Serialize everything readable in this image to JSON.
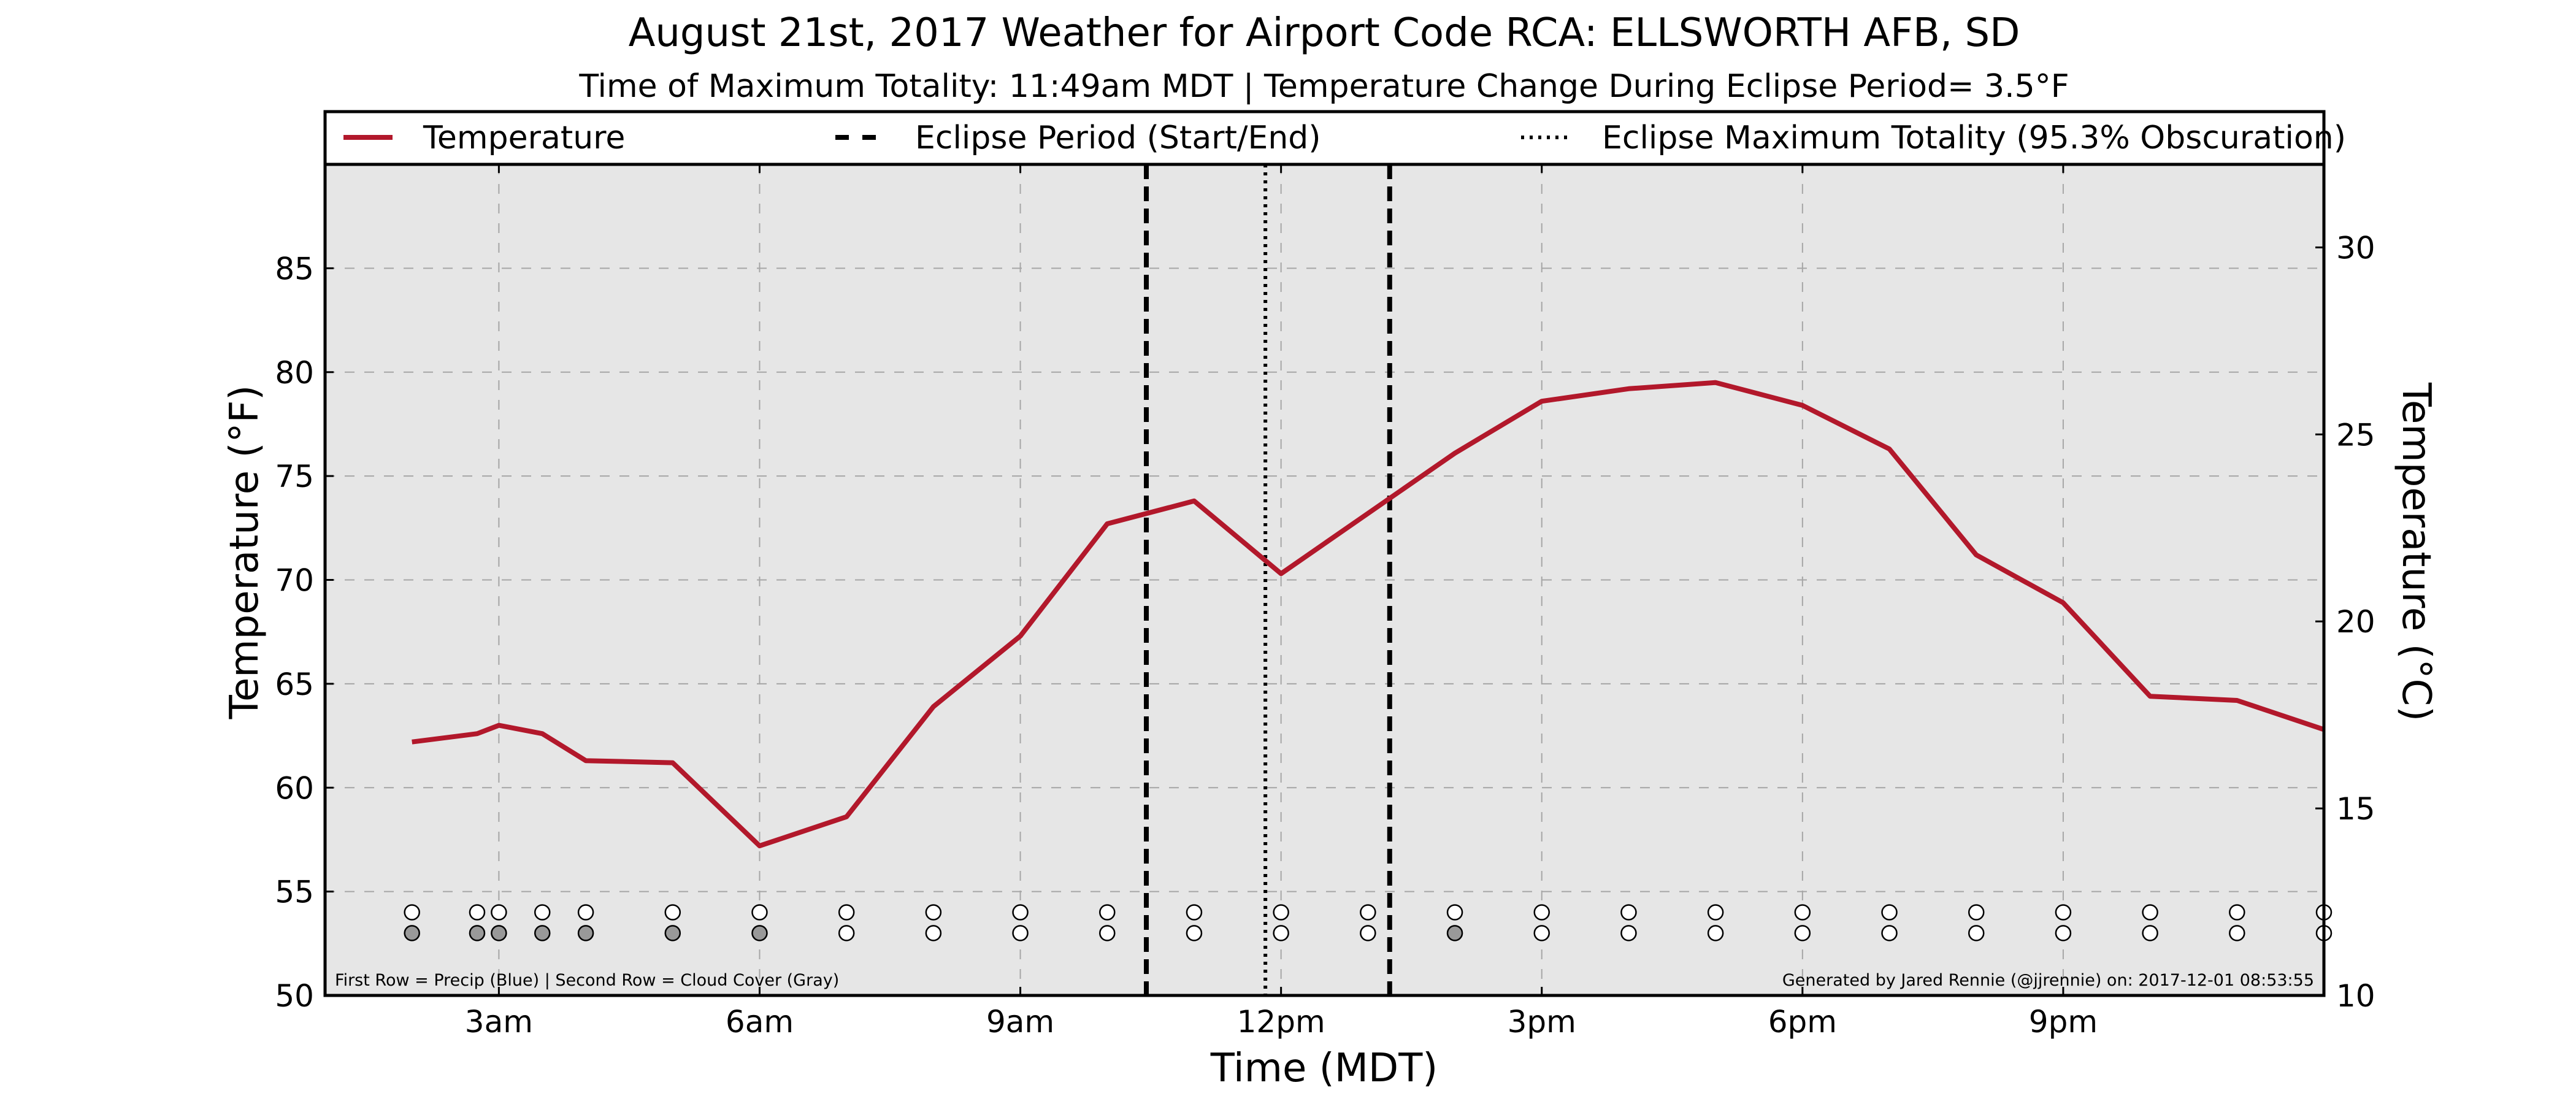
{
  "chart_data": {
    "type": "line",
    "title": "August 21st, 2017 Weather for Airport Code RCA: ELLSWORTH AFB, SD",
    "subtitle": "Time of Maximum Totality: 11:49am MDT | Temperature Change During Eclipse Period= 3.5°F",
    "xlabel": "Time (MDT)",
    "ylabel": "Temperature (°F)",
    "y2label": "Temperature (°C)",
    "xlim": [
      1.0,
      24.0
    ],
    "ylim": [
      50,
      90
    ],
    "y2lim": [
      10,
      32.22
    ],
    "x_ticks": [
      {
        "value": 3,
        "label": "3am"
      },
      {
        "value": 6,
        "label": "6am"
      },
      {
        "value": 9,
        "label": "9am"
      },
      {
        "value": 12,
        "label": "12pm"
      },
      {
        "value": 15,
        "label": "3pm"
      },
      {
        "value": 18,
        "label": "6pm"
      },
      {
        "value": 21,
        "label": "9pm"
      }
    ],
    "y_ticks": [
      50,
      55,
      60,
      65,
      70,
      75,
      80,
      85
    ],
    "y2_ticks": [
      10,
      15,
      20,
      25,
      30
    ],
    "grid": true,
    "legend": {
      "position": "top",
      "entries": [
        {
          "label": "Temperature",
          "style": "solid",
          "color": "#b2182b"
        },
        {
          "label": "Eclipse Period (Start/End)",
          "style": "dashed",
          "color": "#000000"
        },
        {
          "label": "Eclipse Maximum Totality (95.3% Obscuration)",
          "style": "dotted",
          "color": "#000000"
        }
      ]
    },
    "series": [
      {
        "name": "Temperature",
        "color": "#b2182b",
        "x": [
          2.0,
          2.75,
          3.0,
          3.5,
          4.0,
          5.0,
          6.0,
          7.0,
          8.0,
          9.0,
          10.0,
          11.0,
          12.0,
          13.0,
          14.0,
          15.0,
          16.0,
          17.0,
          18.0,
          19.0,
          20.0,
          21.0,
          22.0,
          23.0,
          24.0
        ],
        "y": [
          62.2,
          62.6,
          63.0,
          62.6,
          61.3,
          61.2,
          57.2,
          58.6,
          63.9,
          67.3,
          72.7,
          73.8,
          70.3,
          73.2,
          76.1,
          78.6,
          79.2,
          79.5,
          78.4,
          76.3,
          71.2,
          68.9,
          64.4,
          64.2,
          62.8
        ]
      }
    ],
    "eclipse_period": {
      "start": 10.45,
      "end": 13.25
    },
    "max_totality": 11.82,
    "observations": {
      "precip_row_y": 54,
      "cloud_row_y": 53,
      "precip_color": "#ffffff",
      "cloud_clear_color": "#ffffff",
      "cloud_cover_color": "#999999",
      "points": [
        {
          "x": 2.0,
          "cloud": true
        },
        {
          "x": 2.75,
          "cloud": true
        },
        {
          "x": 3.0,
          "cloud": true
        },
        {
          "x": 3.5,
          "cloud": true
        },
        {
          "x": 4.0,
          "cloud": true
        },
        {
          "x": 5.0,
          "cloud": true
        },
        {
          "x": 6.0,
          "cloud": true
        },
        {
          "x": 7.0,
          "cloud": false
        },
        {
          "x": 8.0,
          "cloud": false
        },
        {
          "x": 9.0,
          "cloud": false
        },
        {
          "x": 10.0,
          "cloud": false
        },
        {
          "x": 11.0,
          "cloud": false
        },
        {
          "x": 12.0,
          "cloud": false
        },
        {
          "x": 13.0,
          "cloud": false
        },
        {
          "x": 14.0,
          "cloud": true
        },
        {
          "x": 15.0,
          "cloud": false
        },
        {
          "x": 16.0,
          "cloud": false
        },
        {
          "x": 17.0,
          "cloud": false
        },
        {
          "x": 18.0,
          "cloud": false
        },
        {
          "x": 19.0,
          "cloud": false
        },
        {
          "x": 20.0,
          "cloud": false
        },
        {
          "x": 21.0,
          "cloud": false
        },
        {
          "x": 22.0,
          "cloud": false
        },
        {
          "x": 23.0,
          "cloud": false
        },
        {
          "x": 24.0,
          "cloud": false
        }
      ]
    },
    "annotations": [
      {
        "text": "First Row = Precip (Blue) | Second Row = Cloud Cover (Gray)",
        "position": "bottom-left"
      },
      {
        "text": "Generated by Jared Rennie (@jjrennie) on: 2017-12-01 08:53:55",
        "position": "bottom-right"
      }
    ],
    "colors": {
      "plot_background": "#e6e6e6",
      "grid": "#a6a6a6"
    }
  }
}
